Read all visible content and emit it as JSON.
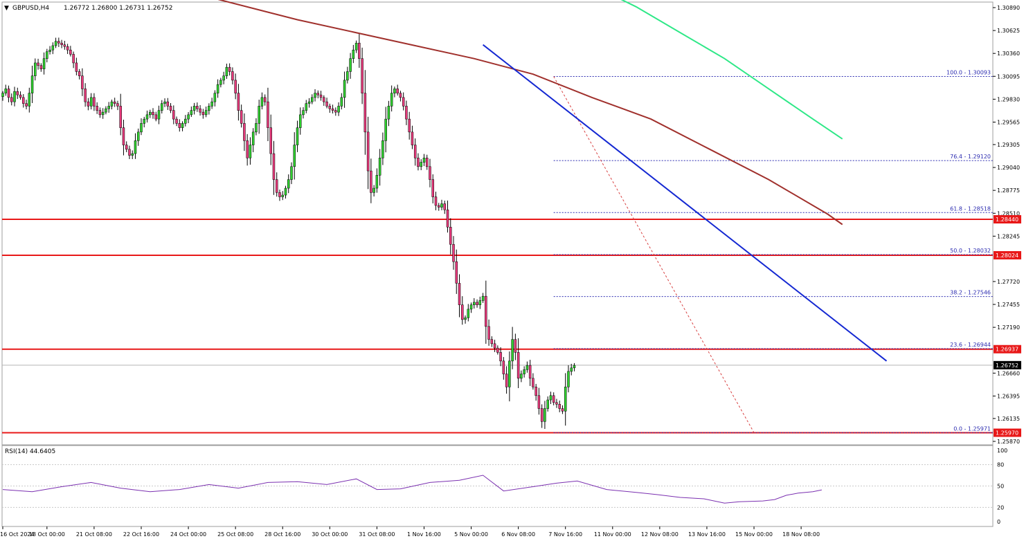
{
  "header": {
    "symbol": "GBPUSD,H4",
    "ohlc": "1.26772 1.26800 1.26731 1.26752",
    "menu_glyph": "▼"
  },
  "colors": {
    "bull": "#2fd02f",
    "bear": "#e83a7c",
    "wick": "#000000",
    "ma_red": "#a0302c",
    "ma_green": "#2ee887",
    "trend": "#1428d2",
    "level": "#e81818",
    "fib": "#2b2bb0",
    "fib_diag": "#d84040",
    "rsi": "#7a2fb0"
  },
  "chart_data": {
    "type": "candlestick",
    "price_ticks": [
      1.3089,
      1.30625,
      1.3036,
      1.30095,
      1.2983,
      1.29565,
      1.29305,
      1.2904,
      1.28775,
      1.2851,
      1.28245,
      1.2772,
      1.27455,
      1.2719,
      1.2666,
      1.26395,
      1.26135,
      1.2587
    ],
    "tick_labels": [
      "1.30890",
      "1.30625",
      "1.30360",
      "1.30095",
      "1.29830",
      "1.29565",
      "1.29305",
      "1.29040",
      "1.28775",
      "1.28510",
      "1.28245",
      "1.27720",
      "1.27455",
      "1.27190",
      "1.26660",
      "1.26395",
      "1.26135",
      "1.25870"
    ],
    "date_ticks": [
      {
        "i": 0,
        "label": "16 Oct 2024"
      },
      {
        "i": 15,
        "label": "18 Oct 00:00"
      },
      {
        "i": 31,
        "label": "21 Oct 08:00"
      },
      {
        "i": 47,
        "label": "22 Oct 16:00"
      },
      {
        "i": 63,
        "label": "24 Oct 00:00"
      },
      {
        "i": 79,
        "label": "25 Oct 08:00"
      },
      {
        "i": 95,
        "label": "28 Oct 16:00"
      },
      {
        "i": 111,
        "label": "30 Oct 00:00"
      },
      {
        "i": 127,
        "label": "31 Oct 08:00"
      },
      {
        "i": 143,
        "label": "1 Nov 16:00"
      },
      {
        "i": 159,
        "label": "5 Nov 00:00"
      },
      {
        "i": 175,
        "label": "6 Nov 08:00"
      },
      {
        "i": 191,
        "label": "7 Nov 16:00"
      },
      {
        "i": 207,
        "label": "11 Nov 00:00"
      },
      {
        "i": 223,
        "label": "12 Nov 08:00"
      },
      {
        "i": 239,
        "label": "13 Nov 16:00"
      },
      {
        "i": 255,
        "label": "15 Nov 00:00"
      },
      {
        "i": 271,
        "label": "18 Nov 08:00"
      }
    ],
    "closes": [
      1.299,
      1.2995,
      1.2985,
      1.298,
      1.2992,
      1.2988,
      1.2985,
      1.2978,
      1.2975,
      1.299,
      1.301,
      1.3025,
      1.3022,
      1.3018,
      1.303,
      1.3038,
      1.304,
      1.3045,
      1.305,
      1.3048,
      1.3046,
      1.3044,
      1.304,
      1.3035,
      1.3025,
      1.3015,
      1.301,
      1.2995,
      1.298,
      1.2975,
      1.2985,
      1.2975,
      1.297,
      1.2965,
      1.2968,
      1.2972,
      1.2975,
      1.298,
      1.2978,
      1.2975,
      1.295,
      1.293,
      1.2925,
      1.2918,
      1.292,
      1.2935,
      1.2945,
      1.2955,
      1.296,
      1.2965,
      1.2968,
      1.2965,
      1.296,
      1.297,
      1.2978,
      1.298,
      1.2975,
      1.297,
      1.296,
      1.2955,
      1.295,
      1.2955,
      1.296,
      1.2965,
      1.297,
      1.2975,
      1.2972,
      1.2968,
      1.2965,
      1.297,
      1.2975,
      1.298,
      1.299,
      1.3,
      1.3005,
      1.301,
      1.302,
      1.3015,
      1.3005,
      1.299,
      1.297,
      1.2955,
      1.2935,
      1.2915,
      1.293,
      1.2945,
      1.2955,
      1.2975,
      1.2985,
      1.298,
      1.295,
      1.292,
      1.289,
      1.2875,
      1.287,
      1.2872,
      1.288,
      1.289,
      1.2905,
      1.293,
      1.295,
      1.2965,
      1.297,
      1.2978,
      1.298,
      1.2985,
      1.299,
      1.2988,
      1.2985,
      1.298,
      1.2975,
      1.2972,
      1.297,
      1.2968,
      1.2975,
      1.2985,
      1.3005,
      1.3015,
      1.303,
      1.304,
      1.3048,
      1.303,
      1.299,
      1.2945,
      1.29,
      1.2875,
      1.288,
      1.2895,
      1.2915,
      1.2935,
      1.296,
      1.2975,
      1.299,
      1.2995,
      1.299,
      1.2985,
      1.2975,
      1.296,
      1.2945,
      1.293,
      1.2915,
      1.2905,
      1.291,
      1.2915,
      1.2905,
      1.289,
      1.287,
      1.286,
      1.2858,
      1.2862,
      1.2855,
      1.2835,
      1.2815,
      1.2795,
      1.277,
      1.2745,
      1.2728,
      1.273,
      1.274,
      1.2745,
      1.2748,
      1.2745,
      1.275,
      1.2755,
      1.272,
      1.2705,
      1.27,
      1.2695,
      1.269,
      1.268,
      1.2665,
      1.265,
      1.268,
      1.2705,
      1.269,
      1.266,
      1.2665,
      1.267,
      1.2675,
      1.266,
      1.265,
      1.264,
      1.2625,
      1.261,
      1.2625,
      1.2635,
      1.264,
      1.2632,
      1.263,
      1.2625,
      1.2622,
      1.265,
      1.2668,
      1.2672,
      1.2675
    ],
    "ma_red": [
      [
        0,
        1.3125
      ],
      [
        60,
        1.311
      ],
      [
        100,
        1.3075
      ],
      [
        140,
        1.3045
      ],
      [
        160,
        1.303
      ],
      [
        180,
        1.3012
      ],
      [
        200,
        1.2985
      ],
      [
        220,
        1.296
      ],
      [
        240,
        1.2925
      ],
      [
        260,
        1.289
      ],
      [
        280,
        1.285
      ],
      [
        285,
        1.2838
      ]
    ],
    "ma_green": [
      [
        190,
        1.3125
      ],
      [
        200,
        1.3115
      ],
      [
        215,
        1.309
      ],
      [
        230,
        1.306
      ],
      [
        245,
        1.303
      ],
      [
        260,
        1.2995
      ],
      [
        275,
        1.296
      ],
      [
        285,
        1.2937
      ]
    ],
    "trendline": [
      [
        163,
        1.3046
      ],
      [
        300,
        1.268
      ]
    ],
    "horizontal_levels": [
      {
        "price": 1.2844,
        "label": "1.28440"
      },
      {
        "price": 1.28024,
        "label": "1.28024"
      },
      {
        "price": 1.26937,
        "label": "1.26937"
      },
      {
        "price": 1.2597,
        "label": "1.25970"
      }
    ],
    "fib_levels": [
      {
        "price": 1.30093,
        "label": "100.0 - 1.30093"
      },
      {
        "price": 1.2912,
        "label": "76.4 - 1.29120"
      },
      {
        "price": 1.28518,
        "label": "61.8 - 1.28518"
      },
      {
        "price": 1.28032,
        "label": "50.0 - 1.28032"
      },
      {
        "price": 1.27546,
        "label": "38.2 - 1.27546"
      },
      {
        "price": 1.26944,
        "label": "23.6 - 1.26944"
      },
      {
        "price": 1.25971,
        "label": "0.0 - 1.25971"
      }
    ],
    "fib_start_index": 187,
    "fib_diag": [
      [
        187,
        1.30093
      ],
      [
        255,
        1.25971
      ]
    ],
    "current_price": {
      "price": 1.26752,
      "label": "1.26752"
    },
    "rsi": {
      "label": "RSI(14) 44.6405",
      "levels": [
        100,
        80,
        50,
        20,
        0
      ],
      "level_labels": [
        "100",
        "80",
        "50",
        "20",
        "0"
      ],
      "values": [
        [
          0,
          45
        ],
        [
          10,
          42
        ],
        [
          20,
          49
        ],
        [
          30,
          55
        ],
        [
          40,
          47
        ],
        [
          50,
          42
        ],
        [
          60,
          45
        ],
        [
          70,
          52
        ],
        [
          80,
          47
        ],
        [
          90,
          55
        ],
        [
          100,
          56
        ],
        [
          110,
          52
        ],
        [
          120,
          60
        ],
        [
          127,
          45
        ],
        [
          135,
          46
        ],
        [
          145,
          55
        ],
        [
          155,
          58
        ],
        [
          163,
          65
        ],
        [
          170,
          43
        ],
        [
          180,
          49
        ],
        [
          188,
          54
        ],
        [
          195,
          57
        ],
        [
          205,
          45
        ],
        [
          215,
          41
        ],
        [
          222,
          38
        ],
        [
          230,
          34
        ],
        [
          238,
          32
        ],
        [
          245,
          26
        ],
        [
          250,
          28
        ],
        [
          258,
          29
        ],
        [
          262,
          31
        ],
        [
          266,
          37
        ],
        [
          270,
          40
        ],
        [
          275,
          42
        ],
        [
          278,
          44.6
        ]
      ]
    }
  }
}
